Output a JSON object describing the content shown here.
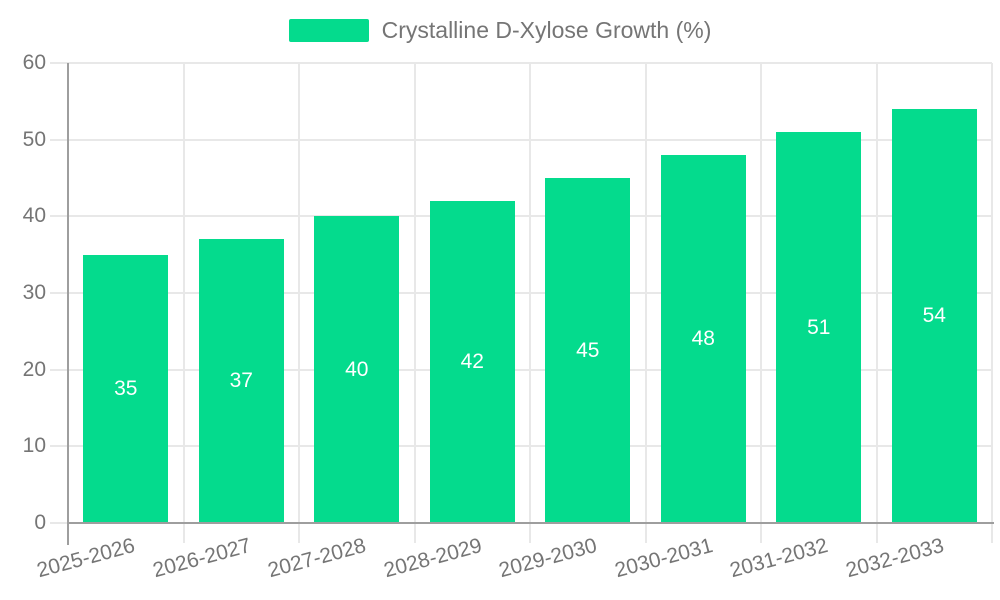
{
  "legend": {
    "label": "Crystalline D-Xylose Growth (%)"
  },
  "chart_data": {
    "type": "bar",
    "title": "Crystalline D-Xylose Growth (%)",
    "categories": [
      "2025-2026",
      "2026-2027",
      "2027-2028",
      "2028-2029",
      "2029-2030",
      "2030-2031",
      "2031-2032",
      "2032-2033"
    ],
    "series": [
      {
        "name": "Crystalline D-Xylose Growth (%)",
        "values": [
          35,
          37,
          40,
          42,
          45,
          48,
          51,
          54
        ]
      }
    ],
    "values": [
      35,
      37,
      40,
      42,
      45,
      48,
      51,
      54
    ],
    "xlabel": "",
    "ylabel": "",
    "ylim": [
      0,
      60
    ],
    "yticks": [
      0,
      10,
      20,
      30,
      40,
      50,
      60
    ],
    "grid": true,
    "legend_position": "top",
    "value_labels_position": "inside-center",
    "x_label_rotation_deg": -15,
    "colors": {
      "bar": "#04db8d",
      "grid": "#e8e8e8",
      "axis": "#9e9e9e",
      "text": "#757575",
      "value_label": "#ffffff",
      "background": "#ffffff"
    }
  }
}
